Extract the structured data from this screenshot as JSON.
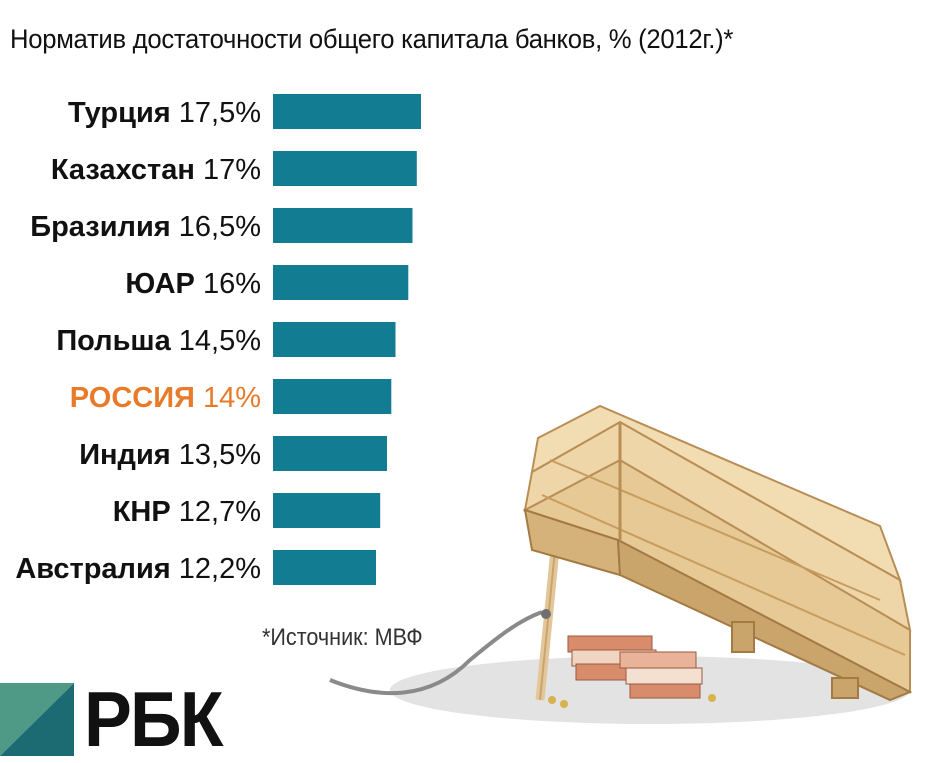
{
  "title": "Норматив достаточности общего капитала банков, % (2012г.)*",
  "source": "*Источник: МВФ",
  "logo": "РБК",
  "colors": {
    "bar": "#127c92",
    "highlight": "#e87b2a",
    "text": "#111111"
  },
  "chart_data": {
    "type": "bar",
    "orientation": "horizontal",
    "title": "Норматив достаточности общего капитала банков, % (2012г.)*",
    "categories": [
      "Турция",
      "Казахстан",
      "Бразилия",
      "ЮАР",
      "Польша",
      "РОССИЯ",
      "Индия",
      "КНР",
      "Австралия"
    ],
    "values": [
      17.5,
      17,
      16.5,
      16,
      14.5,
      14,
      13.5,
      12.7,
      12.2
    ],
    "value_labels": [
      "17,5%",
      "17%",
      "16,5%",
      "16%",
      "14,5%",
      "14%",
      "13,5%",
      "12,7%",
      "12,2%"
    ],
    "highlight_category": "РОССИЯ",
    "xlim": [
      0,
      17.5
    ],
    "grid": false,
    "legend": "none"
  }
}
